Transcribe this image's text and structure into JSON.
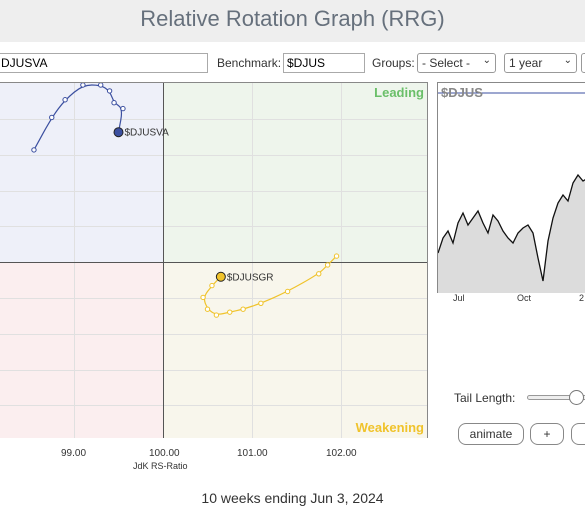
{
  "header": {
    "title": "Relative Rotation Graph (RRG)"
  },
  "controls": {
    "symbols_value": "DJUSVA",
    "benchmark_label": "Benchmark:",
    "benchmark_value": "$DJUS",
    "groups_label": "Groups:",
    "groups_selected": "- Select -",
    "period_selected": "1 year"
  },
  "rrg": {
    "quadrants": {
      "leading": "Leading",
      "weakening": "Weakening"
    },
    "x_ticks": [
      "99.00",
      "100.00",
      "101.00",
      "102.00"
    ],
    "x_axis_title": "JdK RS-Ratio",
    "series": [
      {
        "name": "$DJUSVA",
        "color": "#3b4fa0",
        "points": [
          [
            98.55,
            101.9
          ],
          [
            98.75,
            102.45
          ],
          [
            98.9,
            102.75
          ],
          [
            99.1,
            103.0
          ],
          [
            99.3,
            103.0
          ],
          [
            99.4,
            102.9
          ],
          [
            99.45,
            102.7
          ],
          [
            99.55,
            102.6
          ],
          [
            99.5,
            102.2
          ]
        ]
      },
      {
        "name": "$DJUSGR",
        "color": "#f0c32b",
        "points": [
          [
            101.95,
            100.1
          ],
          [
            101.85,
            99.95
          ],
          [
            101.75,
            99.8
          ],
          [
            101.4,
            99.5
          ],
          [
            101.1,
            99.3
          ],
          [
            100.9,
            99.2
          ],
          [
            100.75,
            99.15
          ],
          [
            100.6,
            99.1
          ],
          [
            100.5,
            99.2
          ],
          [
            100.45,
            99.4
          ],
          [
            100.55,
            99.6
          ],
          [
            100.65,
            99.75
          ]
        ]
      }
    ]
  },
  "benchmark_chart": {
    "label": "$DJUS",
    "x_ticks": [
      "Jul",
      "Oct",
      "2"
    ]
  },
  "tail": {
    "label": "Tail Length:"
  },
  "buttons": {
    "animate": "animate",
    "plus": "+"
  },
  "footer": "10 weeks ending Jun 3, 2024"
}
